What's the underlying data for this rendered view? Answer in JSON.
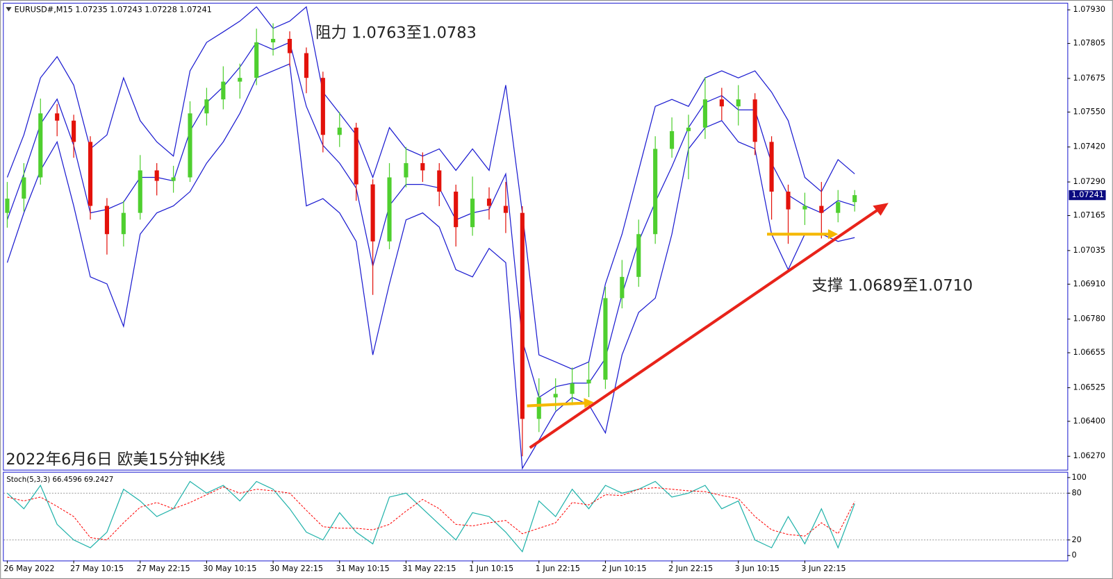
{
  "chart_data": {
    "type": "candlestick",
    "title": "EURUSD#,M15  1.07235 1.07243 1.07228 1.07241",
    "annotations": [
      "阻力 1.0763至1.0783",
      "支撑 1.0689至1.0710",
      "2022年6月6日 欧美15分钟K线"
    ],
    "categories": [
      "26 May 2022",
      null,
      null,
      null,
      "27 May 10:15",
      null,
      null,
      null,
      "27 May 22:15",
      null,
      null,
      null,
      "30 May 10:15",
      null,
      null,
      null,
      "30 May 22:15",
      null,
      null,
      null,
      "31 May 10:15",
      null,
      null,
      null,
      "31 May 22:15",
      null,
      null,
      null,
      "1 Jun 10:15",
      null,
      null,
      null,
      "1 Jun 22:15",
      null,
      null,
      null,
      "2 Jun 10:15",
      null,
      null,
      null,
      "2 Jun 22:15",
      null,
      null,
      null,
      "3 Jun 10:15",
      null,
      null,
      null,
      "3 Jun 22:15",
      null,
      null,
      null
    ],
    "open": [
      1.07175,
      1.07228,
      1.07307,
      1.07545,
      1.07518,
      1.07439,
      1.07201,
      1.07096,
      1.07175,
      1.07333,
      1.07294,
      1.07307,
      1.07545,
      1.07597,
      1.07663,
      1.07677,
      1.07809,
      1.07822,
      1.07769,
      1.07677,
      1.07465,
      1.07492,
      1.07281,
      1.07069,
      1.07307,
      1.0736,
      1.07333,
      1.07254,
      1.07122,
      1.07228,
      1.07201,
      1.07175,
      1.06409,
      1.06489,
      1.06502,
      1.06541,
      1.06555,
      1.06858,
      1.06937,
      1.07096,
      1.07413,
      1.07479,
      1.07492,
      1.07597,
      1.07571,
      1.07597,
      1.07439,
      1.07254,
      1.07188,
      1.07201,
      1.07175,
      1.07215
    ],
    "high": [
      1.0729,
      1.0736,
      1.076,
      1.0758,
      1.0754,
      1.0746,
      1.0723,
      1.0722,
      1.0739,
      1.0736,
      1.0735,
      1.0759,
      1.0764,
      1.0772,
      1.0773,
      1.0786,
      1.0788,
      1.0785,
      1.0779,
      1.077,
      1.0755,
      1.0751,
      1.073,
      1.0736,
      1.0742,
      1.074,
      1.0736,
      1.0728,
      1.0731,
      1.0727,
      1.0729,
      1.072,
      1.0656,
      1.0656,
      1.066,
      1.0662,
      1.069,
      1.07,
      1.0715,
      1.0746,
      1.0753,
      1.0754,
      1.0768,
      1.0764,
      1.0765,
      1.0762,
      1.0746,
      1.0728,
      1.0725,
      1.0729,
      1.0726,
      1.0726
    ],
    "low": [
      1.0712,
      1.0718,
      1.0728,
      1.0746,
      1.0738,
      1.0715,
      1.0702,
      1.0705,
      1.0715,
      1.0724,
      1.0725,
      1.0729,
      1.075,
      1.0756,
      1.076,
      1.0765,
      1.0776,
      1.0772,
      1.0762,
      1.074,
      1.0742,
      1.0722,
      1.0687,
      1.0704,
      1.0727,
      1.0729,
      1.072,
      1.0705,
      1.0709,
      1.0715,
      1.071,
      1.0627,
      1.0636,
      1.0644,
      1.0646,
      1.0649,
      1.0652,
      1.0682,
      1.069,
      1.0706,
      1.0738,
      1.073,
      1.0745,
      1.0752,
      1.075,
      1.0739,
      1.0715,
      1.0706,
      1.0713,
      1.0708,
      1.0714,
      1.0718
    ],
    "close": [
      1.07228,
      1.07307,
      1.07545,
      1.07518,
      1.07439,
      1.07201,
      1.07096,
      1.07175,
      1.07333,
      1.07294,
      1.07307,
      1.07545,
      1.07597,
      1.07663,
      1.07677,
      1.07809,
      1.07822,
      1.07769,
      1.07677,
      1.07465,
      1.07492,
      1.07281,
      1.07069,
      1.07307,
      1.0736,
      1.07333,
      1.07254,
      1.07122,
      1.07228,
      1.07201,
      1.07175,
      1.06409,
      1.06489,
      1.06502,
      1.06541,
      1.06555,
      1.06858,
      1.06937,
      1.07096,
      1.07413,
      1.07479,
      1.07492,
      1.07597,
      1.07571,
      1.07597,
      1.07439,
      1.07254,
      1.07188,
      1.07201,
      1.07175,
      1.07215,
      1.07241
    ],
    "up_color": "#4fcf2f",
    "down_color": "#e3120b",
    "bollinger": {
      "color": "#1a1ad0",
      "upper": [
        1.07307,
        1.07465,
        1.07677,
        1.07756,
        1.0765,
        1.07413,
        1.07465,
        1.07677,
        1.07518,
        1.07439,
        1.07386,
        1.07703,
        1.07809,
        1.07848,
        1.07888,
        1.07941,
        1.07861,
        1.07888,
        1.07941,
        1.07624,
        1.07545,
        1.07465,
        1.07307,
        1.07492,
        1.07413,
        1.07386,
        1.07413,
        1.07333,
        1.07413,
        1.07333,
        1.0765,
        1.07175,
        1.06647,
        1.06621,
        1.06594,
        1.06621,
        1.06911,
        1.07096,
        1.07333,
        1.07571,
        1.07597,
        1.07571,
        1.07677,
        1.07703,
        1.07677,
        1.07703,
        1.07624,
        1.07518,
        1.07307,
        1.07254,
        1.07373,
        1.0732
      ],
      "middle": [
        1.07149,
        1.0732,
        1.07505,
        1.07598,
        1.07426,
        1.07175,
        1.07188,
        1.07215,
        1.07307,
        1.07307,
        1.07294,
        1.07479,
        1.07585,
        1.07644,
        1.07717,
        1.07809,
        1.07782,
        1.07809,
        1.07571,
        1.07426,
        1.0736,
        1.07267,
        1.06977,
        1.07202,
        1.07281,
        1.07281,
        1.07268,
        1.07149,
        1.07175,
        1.07188,
        1.0732,
        1.067,
        1.06489,
        1.06529,
        1.06542,
        1.06542,
        1.06634,
        1.06872,
        1.07069,
        1.07215,
        1.07347,
        1.07492,
        1.07585,
        1.07611,
        1.07558,
        1.07558,
        1.0736,
        1.07241,
        1.07202,
        1.07175,
        1.07221,
        1.07202
      ],
      "lower": [
        1.0699,
        1.07175,
        1.07333,
        1.07439,
        1.07201,
        1.06937,
        1.06911,
        1.06753,
        1.07096,
        1.07175,
        1.07201,
        1.07254,
        1.0736,
        1.07439,
        1.07545,
        1.07677,
        1.07703,
        1.07729,
        1.07201,
        1.07228,
        1.07175,
        1.07069,
        1.06647,
        1.06911,
        1.07149,
        1.07175,
        1.07122,
        1.06964,
        1.06937,
        1.07043,
        1.0699,
        1.06225,
        1.0633,
        1.06436,
        1.06489,
        1.06462,
        1.06357,
        1.06647,
        1.06805,
        1.06858,
        1.07096,
        1.07413,
        1.07492,
        1.07518,
        1.07439,
        1.07413,
        1.07096,
        1.06964,
        1.07096,
        1.07096,
        1.07069,
        1.07083
      ]
    },
    "current_price": 1.07241,
    "ylim": [
      1.0622,
      1.07956
    ],
    "yticks": [
      {
        "value": 1.0793,
        "label": "1.07930"
      },
      {
        "value": 1.07805,
        "label": "1.07805"
      },
      {
        "value": 1.07675,
        "label": "1.07675"
      },
      {
        "value": 1.0755,
        "label": "1.07550"
      },
      {
        "value": 1.0742,
        "label": "1.07420"
      },
      {
        "value": 1.0729,
        "label": "1.07290"
      },
      {
        "value": 1.07165,
        "label": "1.07165"
      },
      {
        "value": 1.07035,
        "label": "1.07035"
      },
      {
        "value": 1.0691,
        "label": "1.06910"
      },
      {
        "value": 1.0678,
        "label": "1.06780"
      },
      {
        "value": 1.06655,
        "label": "1.06655"
      },
      {
        "value": 1.06525,
        "label": "1.06525"
      },
      {
        "value": 1.064,
        "label": "1.06400"
      },
      {
        "value": 1.0627,
        "label": "1.06270"
      }
    ],
    "stochastic": {
      "title": "Stoch(5,3,3) 66.4596 69.2427",
      "main": [
        80,
        60,
        90,
        40,
        20,
        10,
        30,
        85,
        70,
        50,
        60,
        95,
        80,
        90,
        70,
        95,
        85,
        60,
        30,
        20,
        55,
        30,
        15,
        75,
        80,
        60,
        40,
        20,
        55,
        50,
        30,
        5,
        70,
        50,
        85,
        60,
        90,
        80,
        85,
        95,
        75,
        80,
        90,
        60,
        70,
        20,
        10,
        50,
        15,
        60,
        10,
        66.4596
      ],
      "signal": [
        75,
        70,
        75,
        63,
        50,
        23,
        20,
        42,
        62,
        68,
        60,
        68,
        78,
        88,
        80,
        85,
        83,
        80,
        58,
        37,
        35,
        35,
        33,
        40,
        57,
        72,
        60,
        40,
        38,
        42,
        45,
        28,
        35,
        42,
        68,
        65,
        78,
        77,
        85,
        87,
        85,
        83,
        82,
        77,
        73,
        50,
        33,
        27,
        25,
        42,
        28,
        69.2427
      ],
      "main_color": "#20b2aa",
      "signal_color": "#ff0000",
      "ylim": [
        -6.4,
        107.3
      ],
      "yticks": [
        0,
        20,
        80,
        100
      ],
      "levels": [
        20,
        80
      ]
    }
  }
}
